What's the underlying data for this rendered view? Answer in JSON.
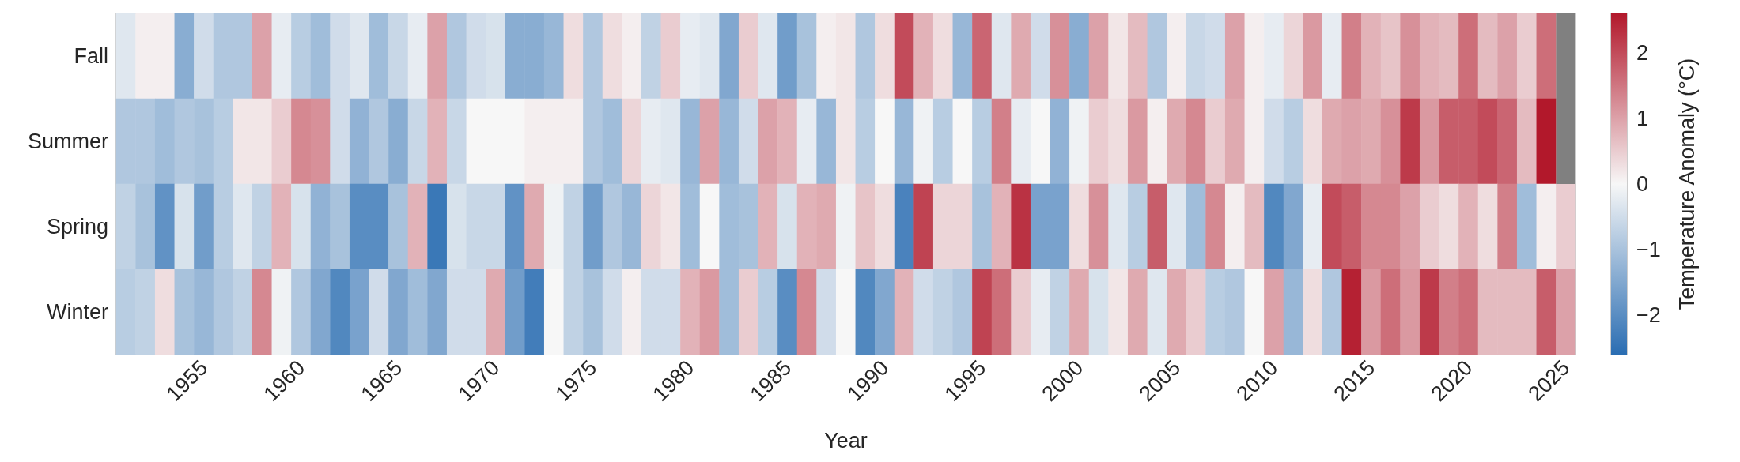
{
  "chart_data": {
    "type": "heatmap",
    "xlabel": "Year",
    "clabel": "Temperature Anomaly (°C)",
    "categories": [
      null,
      null,
      null,
      null,
      "1955",
      null,
      null,
      null,
      null,
      "1960",
      null,
      null,
      null,
      null,
      "1965",
      null,
      null,
      null,
      null,
      "1970",
      null,
      null,
      null,
      null,
      "1975",
      null,
      null,
      null,
      null,
      "1980",
      null,
      null,
      null,
      null,
      "1985",
      null,
      null,
      null,
      null,
      "1990",
      null,
      null,
      null,
      null,
      "1995",
      null,
      null,
      null,
      null,
      "2000",
      null,
      null,
      null,
      null,
      "2005",
      null,
      null,
      null,
      null,
      "2010",
      null,
      null,
      null,
      null,
      "2015",
      null,
      null,
      null,
      null,
      "2020",
      null,
      null,
      null,
      null,
      "2025"
    ],
    "y_categories": [
      "Fall",
      "Summer",
      "Spring",
      "Winter"
    ],
    "cells": [
      [
        -0.3,
        0.1,
        0.1,
        -1.4,
        -0.5,
        -0.9,
        -0.9,
        1.0,
        -0.2,
        -0.8,
        -1.1,
        -0.5,
        -0.3,
        -1.1,
        -0.6,
        -0.2,
        1.0,
        -0.9,
        -0.5,
        -0.4,
        -1.4,
        -1.4,
        -1.2,
        0.3,
        -0.9,
        0.3,
        0.1,
        -0.7,
        0.5,
        -0.2,
        -0.3,
        -1.5,
        0.5,
        -0.3,
        -1.7,
        -1.0,
        0.1,
        0.2,
        -0.9,
        0.3,
        2.0,
        0.8,
        0.3,
        -1.2,
        1.7,
        -0.3,
        0.9,
        -0.5,
        1.2,
        -1.4,
        1.0,
        0.2,
        0.7,
        -0.9,
        0.1,
        -0.6,
        -0.5,
        1.0,
        0.1,
        -0.2,
        0.4,
        1.1,
        -0.2,
        1.4,
        0.8,
        0.6,
        1.2,
        0.8,
        0.7,
        1.6,
        0.7,
        1.0,
        0.5,
        1.6,
        null
      ],
      [
        -0.9,
        -0.9,
        -1.1,
        -0.9,
        -1.0,
        -0.8,
        0.2,
        0.2,
        0.5,
        1.3,
        1.2,
        -0.5,
        -1.3,
        -0.9,
        -1.4,
        -0.6,
        0.8,
        -0.6,
        0.0,
        0.0,
        0.0,
        0.1,
        0.1,
        0.1,
        -0.9,
        -1.1,
        0.4,
        -0.2,
        -0.3,
        -1.2,
        1.0,
        -1.2,
        -0.5,
        1.0,
        0.8,
        -0.2,
        -1.2,
        0.2,
        -0.8,
        0.0,
        -1.2,
        -0.1,
        -0.8,
        0.0,
        -0.8,
        1.4,
        -0.2,
        0.0,
        -1.3,
        -0.1,
        0.5,
        0.3,
        1.1,
        0.1,
        0.9,
        1.3,
        0.5,
        0.9,
        0.1,
        -0.5,
        -0.8,
        0.3,
        0.9,
        1.0,
        0.9,
        1.2,
        2.2,
        1.1,
        1.8,
        1.8,
        2.0,
        1.7,
        0.7,
        2.6,
        null
      ],
      [
        -0.7,
        -1.0,
        -1.9,
        -0.4,
        -1.7,
        -0.8,
        -0.3,
        -0.7,
        0.8,
        -0.4,
        -1.3,
        -1.0,
        -2.0,
        -2.0,
        -1.0,
        0.8,
        -2.4,
        -0.4,
        -0.6,
        -0.6,
        -1.9,
        0.9,
        -0.1,
        -0.7,
        -1.7,
        -0.9,
        -1.2,
        0.4,
        0.2,
        -1.1,
        0.0,
        -1.1,
        -1.0,
        0.8,
        -0.4,
        0.8,
        0.9,
        -0.1,
        0.6,
        0.3,
        -2.2,
        2.1,
        0.4,
        0.4,
        -1.0,
        0.8,
        2.3,
        -1.6,
        -1.6,
        0.3,
        1.2,
        -0.3,
        -0.8,
        1.8,
        -0.3,
        -1.1,
        1.3,
        0.1,
        0.7,
        -2.1,
        -1.5,
        -0.2,
        2.0,
        1.8,
        1.3,
        1.3,
        1.0,
        0.5,
        0.3,
        0.8,
        0.3,
        1.4,
        -1.1,
        0.1,
        0.5
      ],
      [
        -0.8,
        -0.7,
        0.3,
        -1.0,
        -1.2,
        -0.9,
        -0.7,
        1.3,
        -0.1,
        -0.9,
        -1.5,
        -2.1,
        -1.6,
        -0.5,
        -1.5,
        -1.1,
        -1.5,
        -0.5,
        -0.5,
        0.9,
        -1.7,
        -2.3,
        0.0,
        -0.7,
        -1.0,
        -0.5,
        0.1,
        -0.5,
        -0.5,
        0.8,
        1.1,
        -1.1,
        0.5,
        -0.8,
        -2.0,
        1.3,
        -0.5,
        0.0,
        -2.1,
        -1.5,
        0.8,
        -0.5,
        -0.7,
        -0.9,
        2.1,
        1.6,
        0.5,
        -0.2,
        -0.7,
        0.9,
        -0.4,
        0.2,
        0.9,
        -0.3,
        0.9,
        0.5,
        -0.8,
        -0.9,
        0.0,
        1.0,
        -1.2,
        0.3,
        -0.9,
        2.5,
        1.1,
        1.6,
        1.1,
        2.2,
        1.4,
        1.6,
        0.7,
        0.7,
        0.7,
        1.8,
        1.0
      ]
    ],
    "clim": [
      -2.6,
      2.6
    ],
    "cticks": [
      {
        "value": -2,
        "label": "−2"
      },
      {
        "value": -1,
        "label": "−1"
      },
      0,
      1,
      2
    ]
  }
}
